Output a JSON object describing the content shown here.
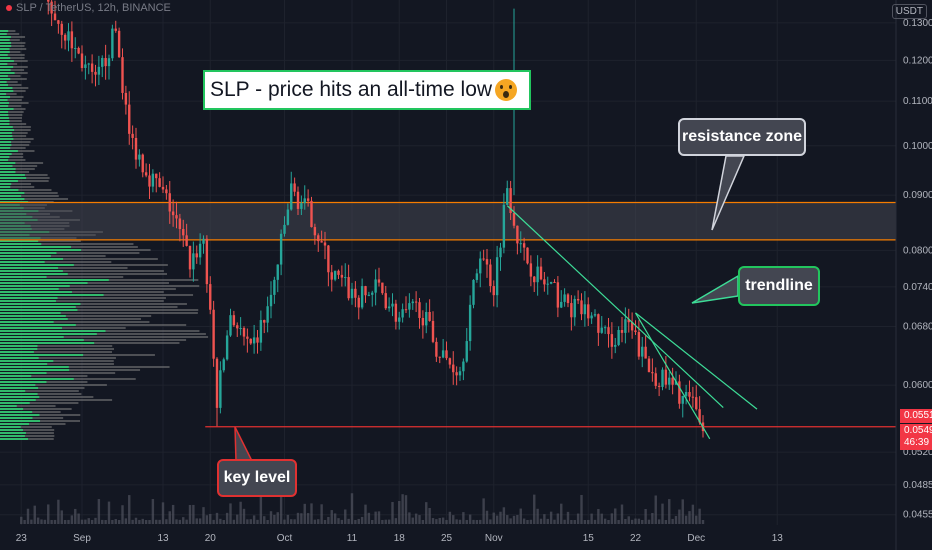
{
  "header": {
    "symbol": "SLP / TetherUS, 12h, BINANCE",
    "currency": "USDT"
  },
  "annotations": {
    "title": "SLP -  price hits an all-time low",
    "title_emoji": "astonished-face",
    "resistance_label": "resistance zone",
    "trendline_label": "trendline",
    "key_level_label": "key level"
  },
  "price_tags": {
    "upper": "0.0551",
    "last": "0.0549",
    "countdown": "46:39"
  },
  "colors": {
    "background": "#131722",
    "up_candle": "#26a69a",
    "down_candle": "#ef5350",
    "volume_profile_up": "#2ecc71",
    "volume_profile_down": "#808080",
    "resistance_zone_line": "#f57c00",
    "key_level_line": "#e03131",
    "trendline": "#3ddc97",
    "title_border": "#22c55e",
    "callout_fill": "#434651"
  },
  "chart_data": {
    "type": "candlestick",
    "interval": "12h",
    "y_scale": "log",
    "ylim": [
      0.0448,
      0.1365
    ],
    "y_ticks": [
      "0.1300",
      "0.1200",
      "0.1100",
      "0.1000",
      "0.0900",
      "0.0800",
      "0.0740",
      "0.0680",
      "0.0600",
      "0.0520",
      "0.0485",
      "0.0455"
    ],
    "x_ticks": [
      "23",
      "Sep",
      "13",
      "20",
      "Oct",
      "11",
      "18",
      "25",
      "Nov",
      "15",
      "22",
      "Dec",
      "13"
    ],
    "resistance_zone": [
      0.0818,
      0.0886
    ],
    "key_level": 0.0549,
    "trendlines": [
      {
        "from": [
          "Nov 3",
          0.088
        ],
        "to": [
          "Dec 5",
          0.0572
        ]
      },
      {
        "from": [
          "Nov 22",
          0.07
        ],
        "to": [
          "Dec 3",
          0.0535
        ]
      }
    ],
    "price_series": [
      [
        "Aug 23",
        0.15
      ],
      [
        "Aug 28",
        0.132
      ],
      [
        "Sep 3",
        0.114
      ],
      [
        "Sep 6",
        0.128
      ],
      [
        "Sep 8",
        0.102
      ],
      [
        "Sep 11",
        0.094
      ],
      [
        "Sep 14",
        0.088
      ],
      [
        "Sep 17",
        0.078
      ],
      [
        "Sep 19",
        0.082
      ],
      [
        "Sep 21",
        0.058
      ],
      [
        "Sep 23",
        0.07
      ],
      [
        "Sep 26",
        0.064
      ],
      [
        "Sep 29",
        0.072
      ],
      [
        "Oct 2",
        0.091
      ],
      [
        "Oct 5",
        0.086
      ],
      [
        "Oct 8",
        0.076
      ],
      [
        "Oct 12",
        0.072
      ],
      [
        "Oct 15",
        0.074
      ],
      [
        "Oct 18",
        0.069
      ],
      [
        "Oct 21",
        0.071
      ],
      [
        "Oct 24",
        0.064
      ],
      [
        "Oct 27",
        0.062
      ],
      [
        "Oct 30",
        0.08
      ],
      [
        "Nov 1",
        0.074
      ],
      [
        "Nov 3",
        0.092
      ],
      [
        "Nov 5",
        0.08
      ],
      [
        "Nov 8",
        0.075
      ],
      [
        "Nov 12",
        0.071
      ],
      [
        "Nov 15",
        0.07
      ],
      [
        "Nov 18",
        0.066
      ],
      [
        "Nov 21",
        0.068
      ],
      [
        "Nov 24",
        0.062
      ],
      [
        "Nov 27",
        0.06
      ],
      [
        "Nov 30",
        0.058
      ],
      [
        "Dec 2",
        0.0549
      ]
    ]
  }
}
